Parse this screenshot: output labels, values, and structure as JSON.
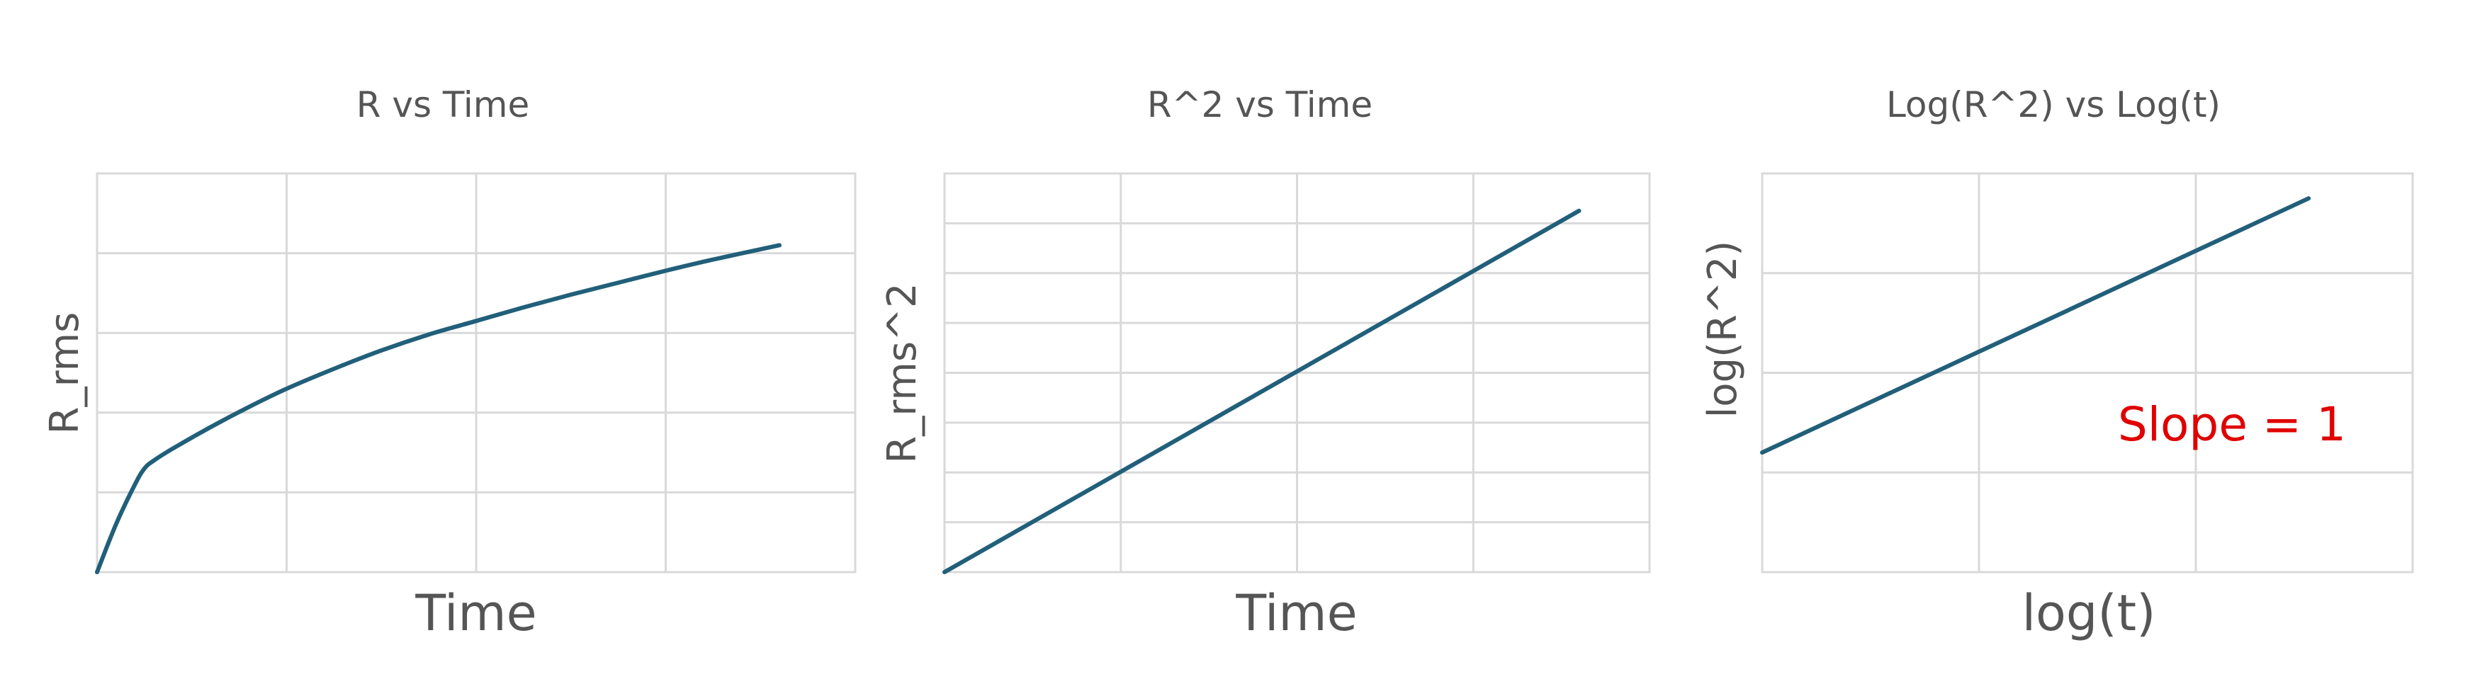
{
  "colors": {
    "series": "#215f7a",
    "annotation": "#e00000"
  },
  "chart_data": [
    {
      "type": "line",
      "title": "R vs Time",
      "xlabel": "Time",
      "ylabel": "R_rms",
      "xlim": [
        0,
        4
      ],
      "ylim": [
        0,
        5
      ],
      "x_gridlines": 4,
      "y_gridlines": 5,
      "grid": true,
      "series": [
        {
          "x": [
            0,
            0.1,
            0.2,
            0.25,
            0.3,
            0.4,
            0.6,
            0.8,
            1.0,
            1.25,
            1.5,
            1.75,
            2.0,
            2.25,
            2.5,
            2.75,
            3.0,
            3.25,
            3.6
          ],
          "y": [
            0,
            0.6,
            1.1,
            1.3,
            1.4,
            1.55,
            1.82,
            2.07,
            2.3,
            2.55,
            2.78,
            2.98,
            3.15,
            3.32,
            3.48,
            3.63,
            3.78,
            3.92,
            4.1
          ]
        }
      ]
    },
    {
      "type": "line",
      "title": "R^2 vs Time",
      "xlabel": "Time",
      "ylabel": "R_rms^2",
      "xlim": [
        0,
        4
      ],
      "ylim": [
        0,
        8
      ],
      "x_gridlines": 4,
      "y_gridlines": 8,
      "grid": true,
      "series": [
        {
          "x": [
            0,
            3.6
          ],
          "y": [
            0,
            7.25
          ]
        }
      ]
    },
    {
      "type": "line",
      "title": "Log(R^2) vs Log(t)",
      "xlabel": "log(t)",
      "ylabel": "log(R^2)",
      "xlim": [
        0,
        3
      ],
      "ylim": [
        0,
        4
      ],
      "x_gridlines": 3,
      "y_gridlines": 4,
      "grid": true,
      "annotation": "Slope  = 1",
      "series": [
        {
          "x": [
            0,
            2.52
          ],
          "y": [
            1.2,
            3.75
          ]
        }
      ]
    }
  ]
}
